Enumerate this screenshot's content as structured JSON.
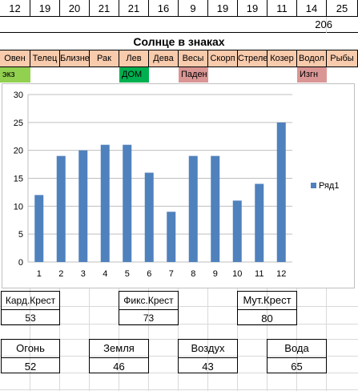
{
  "top_row": [
    "12",
    "19",
    "20",
    "21",
    "21",
    "16",
    "9",
    "19",
    "19",
    "11",
    "14",
    "25"
  ],
  "count_cell": "206",
  "title": "Солнце в знаках",
  "signs": [
    "Овен",
    "Телец",
    "Близне",
    "Рак",
    "Лев",
    "Дева",
    "Весы",
    "Скорп",
    "Стреле",
    "Козер",
    "Водол",
    "Рыбы"
  ],
  "status": {
    "ekz": {
      "label": "экз",
      "color": "#92d050"
    },
    "dom": {
      "label": "ДОМ",
      "color": "#00b050"
    },
    "paden": {
      "label": "Паден",
      "color": "#da9694"
    },
    "izgn": {
      "label": "Изгн",
      "color": "#da9694"
    }
  },
  "chart_data": {
    "type": "bar",
    "categories": [
      "1",
      "2",
      "3",
      "4",
      "5",
      "6",
      "7",
      "8",
      "9",
      "10",
      "11",
      "12"
    ],
    "series": [
      {
        "name": "Ряд1",
        "values": [
          12,
          19,
          20,
          21,
          21,
          16,
          9,
          19,
          19,
          11,
          14,
          25
        ],
        "color": "#4f81bd"
      }
    ],
    "ylim": [
      0,
      30
    ],
    "yticks": [
      "0",
      "5",
      "10",
      "15",
      "20",
      "25",
      "30"
    ],
    "grid": true,
    "legend": "right"
  },
  "crosses": {
    "kard": {
      "label": "Кард.Крест",
      "value": "53"
    },
    "fiks": {
      "label": "Фикс.Крест",
      "value": "73"
    },
    "mut": {
      "label": "Мут.Крест",
      "value": "80"
    }
  },
  "elements": {
    "fire": {
      "label": "Огонь",
      "value": "52"
    },
    "earth": {
      "label": "Земля",
      "value": "46"
    },
    "air": {
      "label": "Воздух",
      "value": "43"
    },
    "water": {
      "label": "Вода",
      "value": "65"
    }
  }
}
